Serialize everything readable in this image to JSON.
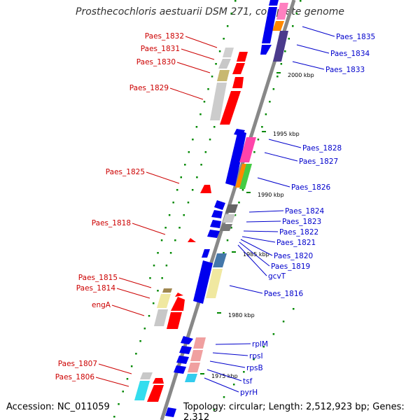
{
  "title": "Prosthecochloris aestuarii DSM 271, complete genome",
  "footer": {
    "accession": "Accession: NC_011059",
    "summary": "Topology: circular; Length: 2,512,923 bp; Genes: 2,312"
  },
  "colors": {
    "left_labels": "#cc0000",
    "right_labels": "#0000cc",
    "backbone": "#888888",
    "ticks": "#008800"
  },
  "scale_labels": [
    "2000 kbp",
    "1995 kbp",
    "1990 kbp",
    "1985 kbp",
    "1980 kbp",
    "1975 kbp"
  ],
  "left_genes": [
    "Paes_1832",
    "Paes_1831",
    "Paes_1830",
    "Paes_1829",
    "Paes_1825",
    "Paes_1818",
    "Paes_1815",
    "Paes_1814",
    "engA",
    "Paes_1807",
    "Paes_1806"
  ],
  "right_genes": [
    "Paes_1835",
    "Paes_1834",
    "Paes_1833",
    "Paes_1828",
    "Paes_1827",
    "Paes_1826",
    "Paes_1824",
    "Paes_1823",
    "Paes_1822",
    "Paes_1821",
    "Paes_1820",
    "Paes_1819",
    "gcvT",
    "Paes_1816",
    "rplM",
    "rpsI",
    "rpsB",
    "tsf",
    "pyrH"
  ]
}
